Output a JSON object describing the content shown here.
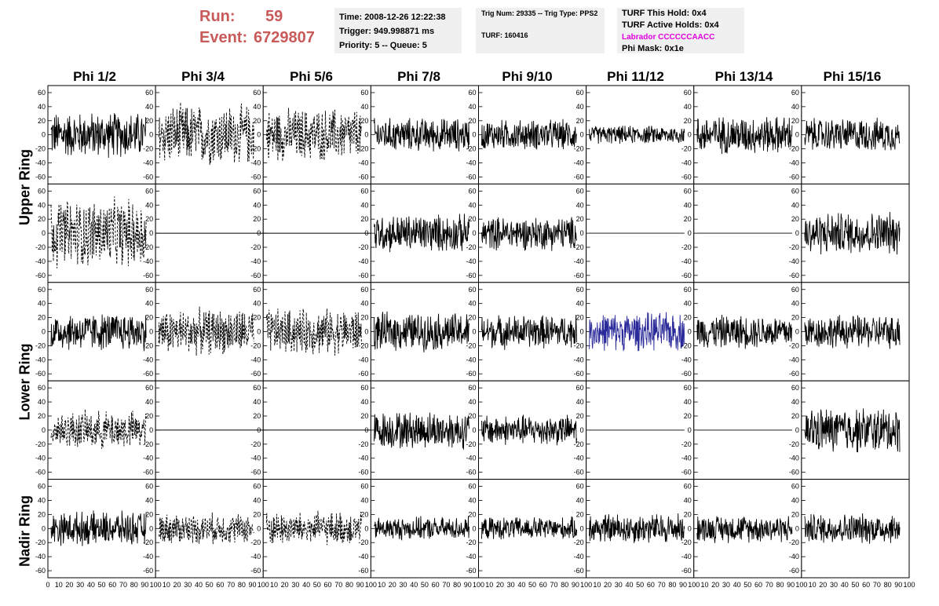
{
  "header": {
    "run_label": "Run:",
    "run_value": "59",
    "event_label": "Event:",
    "event_value": "6729807"
  },
  "info_box_1": {
    "time": "Time: 2008-12-26 12:22:38",
    "trigger": "Trigger: 949.998871 ms",
    "priority": "Priority: 5 -- Queue: 5"
  },
  "info_box_2": {
    "trig": "Trig Num: 29335 -- Trig Type: PPS2",
    "turf": "TURF: 160416"
  },
  "info_box_3": {
    "hold": "TURF This Hold: 0x4",
    "active": "TURF Active Holds: 0x4",
    "labrador": "Labrador CCCCCCAACC",
    "phimask": "Phi Mask: 0x1e"
  },
  "colors": {
    "header_text": "#c85a5a",
    "labrador_text": "#e000e0",
    "blue_trace": "#2a2a9a",
    "trace": "#000000"
  },
  "chart_data": {
    "type": "line",
    "columns": [
      "Phi 1/2",
      "Phi 3/4",
      "Phi 5/6",
      "Phi 7/8",
      "Phi 9/10",
      "Phi 11/12",
      "Phi 13/14",
      "Phi 15/16"
    ],
    "rows": [
      "Upper Ring",
      "Upper Ring",
      "Lower Ring",
      "Lower Ring",
      "Nadir Ring"
    ],
    "row_labels": [
      "Upper Ring",
      "Lower Ring",
      "Nadir Ring"
    ],
    "ylim": [
      -70,
      70
    ],
    "yticks": [
      -60,
      -40,
      -20,
      0,
      20,
      40,
      60
    ],
    "xlim": [
      0,
      100
    ],
    "xticks_first": [
      "0",
      "10",
      "20",
      "30",
      "40",
      "50",
      "60",
      "70",
      "80",
      "90",
      "100"
    ],
    "xticks_other": [
      "10",
      "20",
      "30",
      "40",
      "50",
      "60",
      "70",
      "80",
      "90",
      "100"
    ],
    "panels": [
      [
        "solid",
        "dashed",
        "dashed",
        "solid",
        "solid",
        "solid",
        "solid",
        "solid"
      ],
      [
        "dashed",
        "flat",
        "flat",
        "solid",
        "solid",
        "solid",
        "solid",
        "solid"
      ],
      [
        "solid",
        "dashed",
        "dashed",
        "solid",
        "solid",
        "blue",
        "solid",
        "solid"
      ],
      [
        "dashed",
        "flat",
        "flat",
        "solid",
        "solid",
        "solid",
        "solid",
        "solid"
      ],
      [
        "solid",
        "dashed",
        "dashed",
        "solid",
        "solid",
        "solid",
        "solid",
        "solid"
      ]
    ],
    "amplitude": [
      [
        30,
        40,
        35,
        22,
        20,
        12,
        25,
        22
      ],
      [
        45,
        0,
        0,
        25,
        22,
        0,
        0,
        28
      ],
      [
        25,
        30,
        30,
        25,
        22,
        25,
        22,
        22
      ],
      [
        25,
        0,
        0,
        25,
        20,
        0,
        0,
        30
      ],
      [
        22,
        20,
        22,
        15,
        15,
        20,
        18,
        20
      ]
    ]
  }
}
